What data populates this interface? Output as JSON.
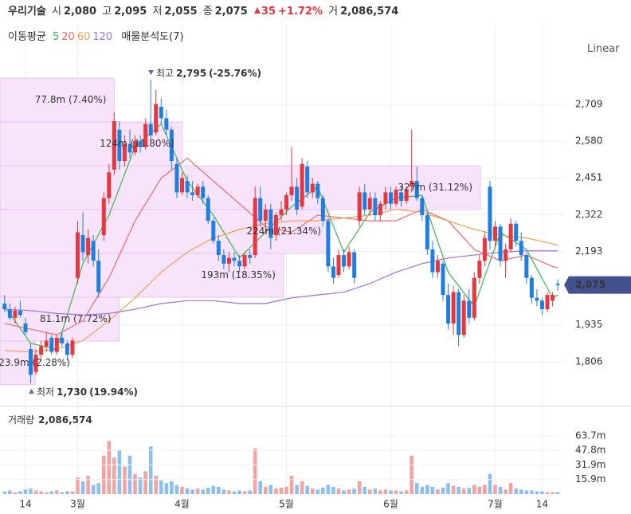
{
  "header": {
    "name": "우리기술",
    "fields": [
      {
        "label": "시",
        "value": 2080,
        "value_label": "2,080"
      },
      {
        "label": "고",
        "value": 2095,
        "value_label": "2,095"
      },
      {
        "label": "저",
        "value": 2055,
        "value_label": "2,055"
      },
      {
        "label": "종",
        "value": 2075,
        "value_label": "2,075"
      }
    ],
    "change": {
      "value": 35,
      "label": "35"
    },
    "change_pct": {
      "value": 1.72,
      "label": "+1.72%"
    },
    "volume": {
      "label": "거",
      "value": 2086574,
      "value_label": "2,086,574"
    }
  },
  "indicators": {
    "title": "이동평균",
    "overlay": "매물분석도(7)"
  },
  "scale_mode": "Linear",
  "chart_data": [
    {
      "type": "candlestick",
      "categories": [
        null,
        null,
        null,
        null,
        "14",
        null,
        null,
        null,
        null,
        null,
        null,
        null,
        null,
        null,
        "3월",
        null,
        null,
        null,
        null,
        null,
        null,
        null,
        null,
        null,
        null,
        null,
        null,
        null,
        null,
        null,
        null,
        null,
        null,
        null,
        "4월",
        null,
        null,
        null,
        null,
        null,
        null,
        null,
        null,
        null,
        null,
        null,
        null,
        null,
        null,
        null,
        null,
        null,
        null,
        null,
        "5월",
        null,
        null,
        null,
        null,
        null,
        null,
        null,
        null,
        null,
        null,
        null,
        null,
        null,
        null,
        null,
        null,
        null,
        null,
        null,
        "6월",
        null,
        null,
        null,
        null,
        null,
        null,
        null,
        null,
        null,
        null,
        null,
        null,
        null,
        null,
        null,
        null,
        null,
        null,
        null,
        "7월",
        null,
        null,
        null,
        null,
        null,
        null,
        null,
        null,
        "14",
        null,
        null,
        null
      ],
      "candles": [
        [
          2010,
          2040,
          1980,
          1990
        ],
        [
          1990,
          2010,
          1950,
          1960
        ],
        [
          1960,
          2000,
          1940,
          1985
        ],
        [
          1985,
          2020,
          1960,
          1970
        ],
        [
          1940,
          1960,
          1900,
          1910
        ],
        [
          1850,
          1870,
          1730,
          1760
        ],
        [
          1770,
          1850,
          1760,
          1830
        ],
        [
          1830,
          1880,
          1810,
          1860
        ],
        [
          1860,
          1910,
          1840,
          1880
        ],
        [
          1890,
          1900,
          1830,
          1840
        ],
        [
          1840,
          1900,
          1830,
          1890
        ],
        [
          1890,
          1910,
          1860,
          1870
        ],
        [
          1870,
          1880,
          1810,
          1830
        ],
        [
          1830,
          1890,
          1820,
          1880
        ],
        [
          2100,
          2300,
          2080,
          2260
        ],
        [
          2250,
          2330,
          2160,
          2190
        ],
        [
          2180,
          2270,
          2150,
          2240
        ],
        [
          2230,
          2250,
          2140,
          2160
        ],
        [
          2160,
          2200,
          2030,
          2050
        ],
        [
          2250,
          2400,
          2230,
          2380
        ],
        [
          2380,
          2500,
          2360,
          2470
        ],
        [
          2480,
          2680,
          2460,
          2650
        ],
        [
          2620,
          2650,
          2480,
          2510
        ],
        [
          2510,
          2600,
          2490,
          2570
        ],
        [
          2570,
          2620,
          2520,
          2540
        ],
        [
          2540,
          2600,
          2530,
          2580
        ],
        [
          2580,
          2600,
          2540,
          2560
        ],
        [
          2560,
          2660,
          2550,
          2640
        ],
        [
          2640,
          2795,
          2580,
          2600
        ],
        [
          2610,
          2760,
          2600,
          2710
        ],
        [
          2700,
          2730,
          2640,
          2660
        ],
        [
          2660,
          2690,
          2600,
          2620
        ],
        [
          2620,
          2630,
          2480,
          2510
        ],
        [
          2500,
          2520,
          2380,
          2400
        ],
        [
          2400,
          2470,
          2390,
          2450
        ],
        [
          2440,
          2460,
          2380,
          2400
        ],
        [
          2400,
          2440,
          2370,
          2390
        ],
        [
          2390,
          2430,
          2380,
          2420
        ],
        [
          2420,
          2440,
          2360,
          2380
        ],
        [
          2380,
          2390,
          2290,
          2300
        ],
        [
          2300,
          2310,
          2220,
          2230
        ],
        [
          2230,
          2250,
          2160,
          2180
        ],
        [
          2180,
          2200,
          2130,
          2150
        ],
        [
          2150,
          2190,
          2120,
          2170
        ],
        [
          2170,
          2190,
          2140,
          2160
        ],
        [
          2160,
          2180,
          2120,
          2140
        ],
        [
          2140,
          2190,
          2130,
          2180
        ],
        [
          2180,
          2200,
          2150,
          2170
        ],
        [
          2180,
          2420,
          2170,
          2380
        ],
        [
          2380,
          2420,
          2280,
          2300
        ],
        [
          2300,
          2360,
          2260,
          2340
        ],
        [
          2340,
          2360,
          2200,
          2240
        ],
        [
          2250,
          2330,
          2230,
          2320
        ],
        [
          2320,
          2370,
          2300,
          2340
        ],
        [
          2340,
          2400,
          2320,
          2390
        ],
        [
          2390,
          2560,
          2370,
          2420
        ],
        [
          2420,
          2450,
          2320,
          2340
        ],
        [
          2350,
          2520,
          2340,
          2500
        ],
        [
          2490,
          2510,
          2380,
          2400
        ],
        [
          2400,
          2450,
          2380,
          2430
        ],
        [
          2430,
          2440,
          2360,
          2380
        ],
        [
          2380,
          2390,
          2280,
          2300
        ],
        [
          2300,
          2310,
          2120,
          2140
        ],
        [
          2140,
          2170,
          2080,
          2100
        ],
        [
          2110,
          2200,
          2100,
          2180
        ],
        [
          2180,
          2200,
          2120,
          2140
        ],
        [
          2140,
          2210,
          2130,
          2190
        ],
        [
          2190,
          2200,
          2080,
          2100
        ],
        [
          2300,
          2420,
          2280,
          2400
        ],
        [
          2400,
          2430,
          2320,
          2340
        ],
        [
          2340,
          2400,
          2320,
          2380
        ],
        [
          2380,
          2400,
          2300,
          2320
        ],
        [
          2320,
          2370,
          2300,
          2360
        ],
        [
          2360,
          2420,
          2340,
          2400
        ],
        [
          2400,
          2420,
          2340,
          2360
        ],
        [
          2360,
          2420,
          2350,
          2410
        ],
        [
          2400,
          2420,
          2350,
          2370
        ],
        [
          2370,
          2420,
          2360,
          2410
        ],
        [
          2420,
          2620,
          2400,
          2440
        ],
        [
          2440,
          2490,
          2370,
          2380
        ],
        [
          2380,
          2390,
          2300,
          2320
        ],
        [
          2320,
          2330,
          2180,
          2200
        ],
        [
          2200,
          2230,
          2100,
          2120
        ],
        [
          2120,
          2180,
          2100,
          2160
        ],
        [
          2150,
          2160,
          2020,
          2040
        ],
        [
          2040,
          2080,
          1920,
          1940
        ],
        [
          1940,
          2070,
          1900,
          2050
        ],
        [
          2050,
          2060,
          1860,
          1900
        ],
        [
          1900,
          2040,
          1890,
          2020
        ],
        [
          2020,
          2060,
          1940,
          1960
        ],
        [
          1960,
          2120,
          1950,
          2100
        ],
        [
          2100,
          2180,
          2080,
          2160
        ],
        [
          2160,
          2260,
          2140,
          2240
        ],
        [
          2420,
          2440,
          2200,
          2230
        ],
        [
          2230,
          2300,
          2210,
          2280
        ],
        [
          2280,
          2290,
          2140,
          2160
        ],
        [
          2160,
          2220,
          2100,
          2200
        ],
        [
          2200,
          2310,
          2190,
          2290
        ],
        [
          2290,
          2300,
          2210,
          2230
        ],
        [
          2230,
          2260,
          2160,
          2180
        ],
        [
          2180,
          2190,
          2080,
          2100
        ],
        [
          2100,
          2110,
          2010,
          2030
        ],
        [
          2030,
          2060,
          2000,
          2020
        ],
        [
          2020,
          2030,
          1970,
          1990
        ],
        [
          1990,
          2050,
          1980,
          2040
        ],
        [
          2020,
          2050,
          2000,
          2040
        ],
        [
          2080,
          2095,
          2055,
          2075
        ]
      ],
      "up_color": "#e8353f",
      "down_color": "#1f7fe0",
      "ylim": [
        1663,
        2991
      ],
      "yticks": [
        {
          "value": 1806,
          "label": "1,806"
        },
        {
          "value": 1935,
          "label": "1,935"
        },
        {
          "value": 2193,
          "label": "2,193"
        },
        {
          "value": 2322,
          "label": "2,322"
        },
        {
          "value": 2451,
          "label": "2,451"
        },
        {
          "value": 2580,
          "label": "2,580"
        },
        {
          "value": 2709,
          "label": "2,709"
        }
      ],
      "grid": true,
      "last_price": {
        "value": 2075,
        "label": "2,075"
      },
      "moving_averages": {
        "x": [
          0,
          5,
          10,
          15,
          20,
          25,
          30,
          35,
          40,
          45,
          50,
          55,
          60,
          65,
          70,
          75,
          80,
          85,
          90,
          95,
          100,
          105,
          106
        ],
        "series": [
          {
            "name": "5",
            "color": "#3cb44b",
            "values": [
              2000,
              1870,
              1850,
              2150,
              2320,
              2560,
              2640,
              2440,
              2320,
              2170,
              2260,
              2350,
              2420,
              2190,
              2330,
              2380,
              2390,
              2120,
              2000,
              2260,
              2200,
              2030,
              2040
            ]
          },
          {
            "name": "20",
            "color": "#ee6a6a",
            "values": [
              1940,
              1920,
              1900,
              1950,
              2100,
              2300,
              2450,
              2520,
              2440,
              2360,
              2280,
              2260,
              2320,
              2310,
              2300,
              2300,
              2340,
              2300,
              2200,
              2160,
              2180,
              2140,
              2135
            ]
          },
          {
            "name": "60",
            "color": "#f0a050",
            "values": [
              1845,
              1840,
              1850,
              1880,
              1950,
              2030,
              2120,
              2190,
              2240,
              2270,
              2290,
              2300,
              2300,
              2310,
              2320,
              2340,
              2330,
              2300,
              2270,
              2250,
              2240,
              2220,
              2215
            ]
          },
          {
            "name": "120",
            "color": "#a070e0",
            "values": [
              1990,
              1985,
              1975,
              1970,
              1975,
              1990,
              2010,
              2020,
              2020,
              2010,
              2010,
              2030,
              2040,
              2050,
              2080,
              2120,
              2150,
              2170,
              2180,
              2190,
              2195,
              2195,
              2195
            ]
          }
        ]
      },
      "volume_profile": {
        "bin_edges": [
          2801,
          2647,
          2493,
          2340,
          2186,
          2032,
          1878,
          1725
        ],
        "values": [
          77.8,
          124,
          327,
          224,
          193,
          81.1,
          23.9
        ],
        "percents": [
          7.4,
          11.8,
          31.12,
          21.34,
          18.35,
          7.72,
          2.28
        ],
        "value_labels": [
          "77.8m (7.40%)",
          "124m (11.80%)",
          "327m (31.12%)",
          "224m (21.34%)",
          "193m (18.35%)",
          "81.1m (7.72%)",
          "23.9m (2.28%)"
        ],
        "color": "#f7e4fb"
      },
      "annotations": [
        {
          "label": "최고",
          "value": 2795,
          "value_label": "2,795",
          "change": -25.76,
          "change_label": "(-25.76%)"
        },
        {
          "label": "최저",
          "value": 1730,
          "value_label": "1,730",
          "change": 19.94,
          "change_label": "(19.94%)"
        }
      ]
    },
    {
      "type": "bar",
      "title": "거래량",
      "title_value": {
        "value": 2086574,
        "label": "2,086,574"
      },
      "values": [
        3,
        4,
        2,
        3,
        5,
        6,
        4,
        3,
        2,
        3,
        4,
        2,
        3,
        3,
        18,
        14,
        20,
        10,
        12,
        42,
        58,
        40,
        48,
        30,
        42,
        22,
        18,
        25,
        52,
        20,
        15,
        12,
        14,
        10,
        8,
        6,
        5,
        6,
        5,
        7,
        9,
        8,
        5,
        4,
        3,
        4,
        3,
        4,
        50,
        14,
        8,
        10,
        6,
        7,
        8,
        20,
        10,
        14,
        9,
        6,
        5,
        7,
        10,
        8,
        6,
        4,
        5,
        6,
        14,
        8,
        5,
        6,
        4,
        5,
        4,
        4,
        3,
        4,
        42,
        12,
        8,
        10,
        8,
        5,
        7,
        12,
        9,
        8,
        6,
        7,
        10,
        8,
        10,
        22,
        10,
        8,
        5,
        12,
        6,
        5,
        4,
        4,
        3,
        3,
        2,
        2,
        2.086574
      ],
      "up_color": "#f2a4a4",
      "down_color": "#8cc0ee",
      "ylim": [
        0,
        95.7
      ],
      "yticks": [
        {
          "value": 15.9,
          "label": "15.9m"
        },
        {
          "value": 31.9,
          "label": "31.9m"
        },
        {
          "value": 47.8,
          "label": "47.8m"
        },
        {
          "value": 63.7,
          "label": "63.7m"
        }
      ]
    }
  ]
}
